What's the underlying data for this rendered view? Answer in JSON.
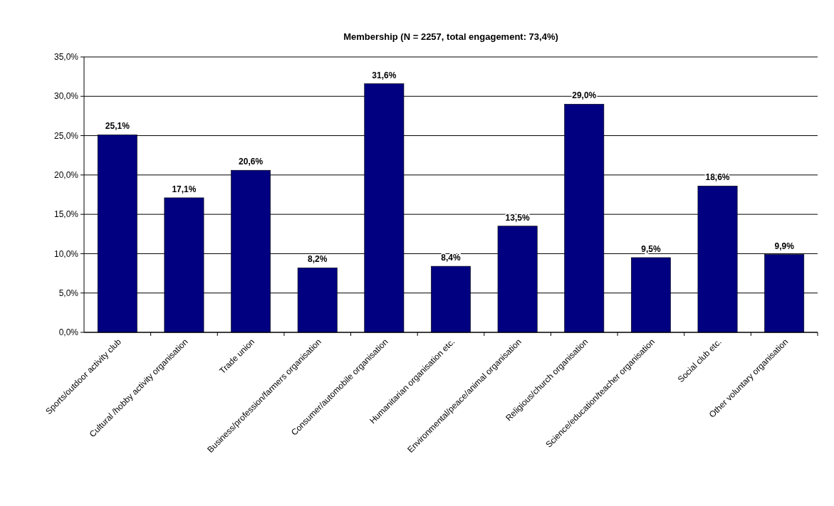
{
  "chart_data": {
    "type": "bar",
    "title": "Membership (N = 2257, total engagement: 73,4%)",
    "categories": [
      "Sports/outdoor activity club",
      "Cultural /hobby activity organisation",
      "Trade union",
      "Business/profession/farmers organisation",
      "Consumer/automobile organisation",
      "Humanitarian organisation etc.",
      "Environmental/peace/animal organisation",
      "Religious/church organisation",
      "Science/education/teacher organisation",
      "Social club etc.",
      "Other voluntary organisation"
    ],
    "values": [
      25.1,
      17.1,
      20.6,
      8.2,
      31.6,
      8.4,
      13.5,
      29.0,
      9.5,
      18.6,
      9.9
    ],
    "value_labels": [
      "25,1%",
      "17,1%",
      "20,6%",
      "8,2%",
      "31,6%",
      "8,4%",
      "13,5%",
      "29,0%",
      "9,5%",
      "18,6%",
      "9,9%"
    ],
    "color": "#000080",
    "ylim": [
      0,
      35
    ],
    "yticks": [
      {
        "value": 0,
        "label": "0,0%"
      },
      {
        "value": 5,
        "label": "5,0%"
      },
      {
        "value": 10,
        "label": "10,0%"
      },
      {
        "value": 15,
        "label": "15,0%"
      },
      {
        "value": 20,
        "label": "20,0%"
      },
      {
        "value": 25,
        "label": "25,0%"
      },
      {
        "value": 30,
        "label": "30,0%"
      },
      {
        "value": 35,
        "label": "35,0%"
      }
    ],
    "grid": "y"
  }
}
